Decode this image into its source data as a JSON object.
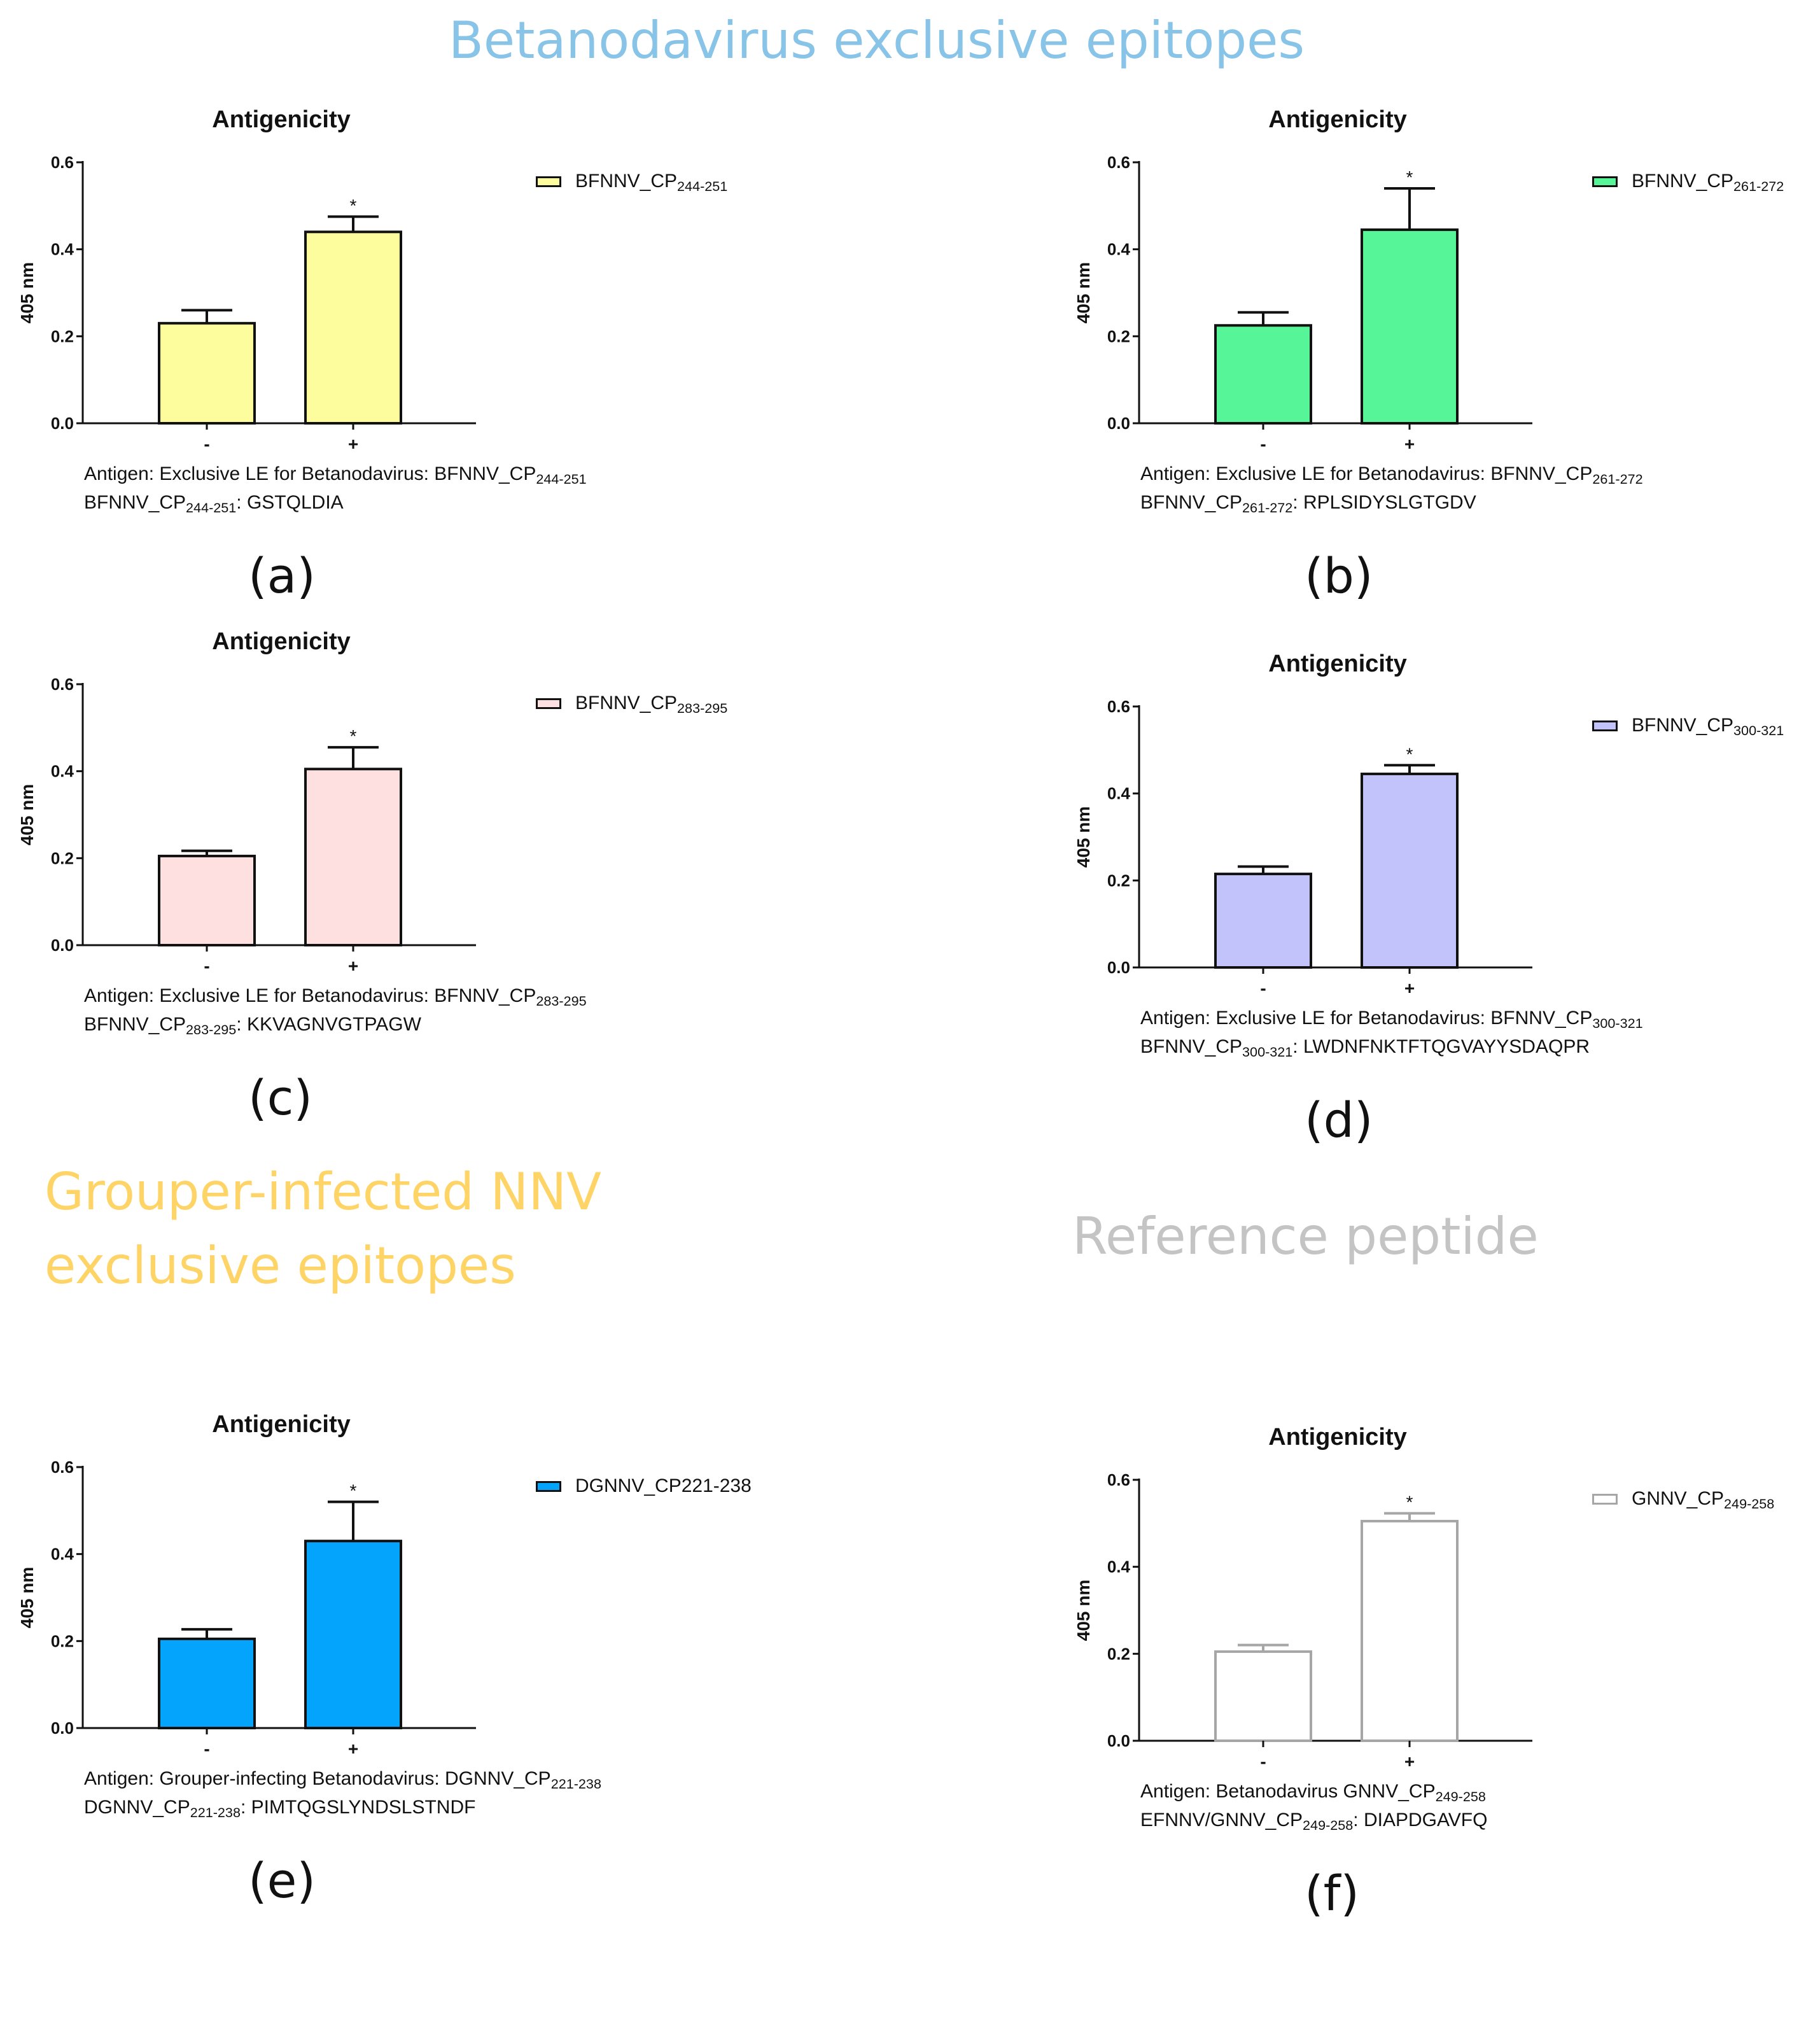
{
  "titles": {
    "betanodavirus": "Betanodavirus exclusive epitopes",
    "grouper_line1": "Grouper-infected NNV",
    "grouper_line2": "exclusive epitopes",
    "reference": "Reference peptide"
  },
  "colors": {
    "betanodavirus_title": "#88c3e8",
    "grouper_title": "#ffd466",
    "reference_title": "#c4c4c4"
  },
  "chart_data": [
    {
      "type": "bar",
      "id": "a",
      "panel_label": "(a)",
      "title": "Antigenicity",
      "ylabel": "405 nm",
      "ylim": [
        0,
        0.6
      ],
      "yticks": [
        "0.0",
        "0.2",
        "0.4",
        "0.6"
      ],
      "categories": [
        "-",
        "+"
      ],
      "values": [
        0.23,
        0.44
      ],
      "errors": [
        0.03,
        0.035
      ],
      "significance": [
        "",
        "*"
      ],
      "fill": "#fdfd9e",
      "edge": "#111111",
      "legend": {
        "name": "BFNNV_CP",
        "sub": "244-251"
      },
      "caption": {
        "line1": {
          "text": "Antigen: Exclusive LE for Betanodavirus: BFNNV_CP",
          "sub": "244-251",
          "after": ""
        },
        "line2": {
          "text": "BFNNV_CP",
          "sub": "244-251",
          "after": ": GSTQLDIA"
        }
      }
    },
    {
      "type": "bar",
      "id": "b",
      "panel_label": "(b)",
      "title": "Antigenicity",
      "ylabel": "405 nm",
      "ylim": [
        0,
        0.6
      ],
      "yticks": [
        "0.0",
        "0.2",
        "0.4",
        "0.6"
      ],
      "categories": [
        "-",
        "+"
      ],
      "values": [
        0.225,
        0.445
      ],
      "errors": [
        0.03,
        0.095
      ],
      "significance": [
        "",
        "*"
      ],
      "fill": "#55f598",
      "edge": "#111111",
      "legend": {
        "name": "BFNNV_CP",
        "sub": "261-272"
      },
      "caption": {
        "line1": {
          "text": "Antigen: Exclusive LE for Betanodavirus: BFNNV_CP",
          "sub": "261-272",
          "after": ""
        },
        "line2": {
          "text": "BFNNV_CP",
          "sub": "261-272",
          "after": ": RPLSIDYSLGTGDV"
        }
      }
    },
    {
      "type": "bar",
      "id": "c",
      "panel_label": "(c)",
      "title": "Antigenicity",
      "ylabel": "405 nm",
      "ylim": [
        0,
        0.6
      ],
      "yticks": [
        "0.0",
        "0.2",
        "0.4",
        "0.6"
      ],
      "categories": [
        "-",
        "+"
      ],
      "values": [
        0.205,
        0.405
      ],
      "errors": [
        0.012,
        0.05
      ],
      "significance": [
        "",
        "*"
      ],
      "fill": "#ffe0e0",
      "edge": "#111111",
      "legend": {
        "name": "BFNNV_CP",
        "sub": "283-295"
      },
      "caption": {
        "line1": {
          "text": "Antigen: Exclusive LE for Betanodavirus: BFNNV_CP",
          "sub": "283-295",
          "after": ""
        },
        "line2": {
          "text": "BFNNV_CP",
          "sub": "283-295",
          "after": ": KKVAGNVGTPAGW"
        }
      }
    },
    {
      "type": "bar",
      "id": "d",
      "panel_label": "(d)",
      "title": "Antigenicity",
      "ylabel": "405 nm",
      "ylim": [
        0,
        0.6
      ],
      "yticks": [
        "0.0",
        "0.2",
        "0.4",
        "0.6"
      ],
      "categories": [
        "-",
        "+"
      ],
      "values": [
        0.215,
        0.445
      ],
      "errors": [
        0.017,
        0.02
      ],
      "significance": [
        "",
        "*"
      ],
      "fill": "#c3c3fb",
      "edge": "#111111",
      "legend": {
        "name": "BFNNV_CP",
        "sub": "300-321"
      },
      "caption": {
        "line1": {
          "text": "Antigen: Exclusive LE for Betanodavirus: BFNNV_CP",
          "sub": "300-321",
          "after": ""
        },
        "line2": {
          "text": "BFNNV_CP",
          "sub": "300-321",
          "after": ": LWDNFNKTFTQGVAYYSDAQPR"
        }
      }
    },
    {
      "type": "bar",
      "id": "e",
      "panel_label": "(e)",
      "title": "Antigenicity",
      "ylabel": "405 nm",
      "ylim": [
        0,
        0.6
      ],
      "yticks": [
        "0.0",
        "0.2",
        "0.4",
        "0.6"
      ],
      "categories": [
        "-",
        "+"
      ],
      "values": [
        0.205,
        0.43
      ],
      "errors": [
        0.022,
        0.09
      ],
      "significance": [
        "",
        "*"
      ],
      "fill": "#05a4fc",
      "edge": "#111111",
      "legend": {
        "name": "DGNNV_CP221-238",
        "sub": ""
      },
      "caption": {
        "line1": {
          "text": "Antigen: Grouper-infecting Betanodavirus: DGNNV_CP",
          "sub": "221-238",
          "after": ""
        },
        "line2": {
          "text": "DGNNV_CP",
          "sub": "221-238",
          "after": ": PIMTQGSLYNDSLSTNDF"
        }
      }
    },
    {
      "type": "bar",
      "id": "f",
      "panel_label": "(f)",
      "title": "Antigenicity",
      "ylabel": "405 nm",
      "ylim": [
        0,
        0.6
      ],
      "yticks": [
        "0.0",
        "0.2",
        "0.4",
        "0.6"
      ],
      "categories": [
        "-",
        "+"
      ],
      "values": [
        0.205,
        0.505
      ],
      "errors": [
        0.015,
        0.018
      ],
      "significance": [
        "",
        "*"
      ],
      "fill": "#ffffff",
      "edge": "#a6a6a6",
      "legend": {
        "name": "GNNV_CP",
        "sub": "249-258"
      },
      "caption": {
        "line1": {
          "text": "Antigen: Betanodavirus GNNV_CP",
          "sub": "249-258",
          "after": ""
        },
        "line2": {
          "text": "EFNNV/GNNV_CP",
          "sub": "249-258",
          "after": ": DIAPDGAVFQ"
        }
      }
    }
  ]
}
